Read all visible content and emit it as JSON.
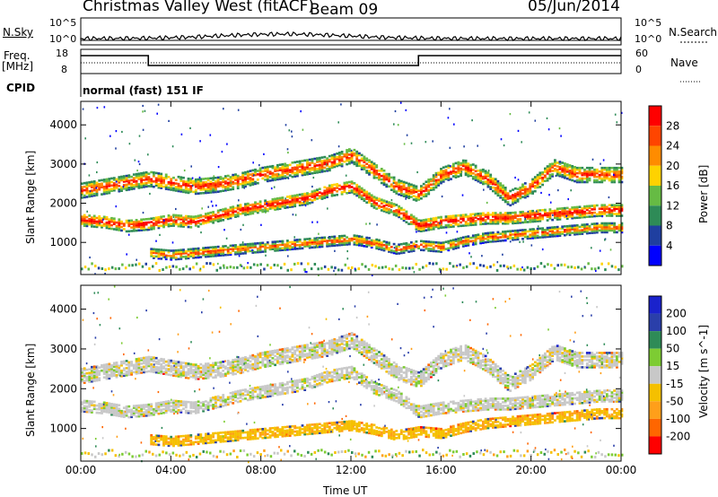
{
  "header": {
    "station": "Christmas Valley West (fitACF)",
    "beam": "Beam 09",
    "date": "05/Jun/2014"
  },
  "noise_panel": {
    "left_label": "N.Sky",
    "right_label": "N.Search",
    "left_ticks": [
      "10^5",
      "10^0"
    ],
    "right_ticks": [
      "10^5",
      "10^0"
    ]
  },
  "freq_panel": {
    "left_label_1": "Freq.",
    "left_label_2": "[MHz]",
    "right_label": "Nave",
    "left_ticks": [
      "18",
      "8"
    ],
    "right_ticks": [
      "60",
      "0"
    ],
    "cpid_label": "CPID",
    "cpid_text": "normal (fast) 151 IF"
  },
  "colors": {
    "power": [
      "#0000ff",
      "#1f3fa0",
      "#2e8b57",
      "#66bb44",
      "#ffd200",
      "#ff8c00",
      "#ff4500",
      "#ff0000"
    ],
    "velocity": [
      "#ff0000",
      "#ff6600",
      "#ff9f1a",
      "#f5c000",
      "#c8c8c8",
      "#7dcc33",
      "#2e8b57",
      "#2a3faa",
      "#1a22cc"
    ]
  },
  "chart_data": [
    {
      "type": "heatmap",
      "panel": "power",
      "xlabel": "",
      "ylabel": "Slant Range [km]",
      "x_ticks": [
        "00:00",
        "04:00",
        "08:00",
        "12:00",
        "16:00",
        "20:00",
        "00:00"
      ],
      "x_tick_hours": [
        0,
        4,
        8,
        12,
        16,
        20,
        24
      ],
      "xlim": [
        0,
        24
      ],
      "y_ticks": [
        1000,
        2000,
        3000,
        4000
      ],
      "ylim": [
        180,
        4600
      ],
      "colorbar_label": "Power [dB]",
      "colorbar_ticks": [
        "4",
        "8",
        "12",
        "16",
        "20",
        "24",
        "28"
      ],
      "bands": [
        {
          "name": "upper echo band",
          "points": [
            [
              0,
              2300
            ],
            [
              1,
              2400
            ],
            [
              2,
              2500
            ],
            [
              3,
              2600
            ],
            [
              4,
              2500
            ],
            [
              5,
              2400
            ],
            [
              6,
              2450
            ],
            [
              7,
              2550
            ],
            [
              8,
              2700
            ],
            [
              9,
              2800
            ],
            [
              10,
              2900
            ],
            [
              11,
              3000
            ],
            [
              12,
              3200
            ],
            [
              13,
              2800
            ],
            [
              14,
              2400
            ],
            [
              15,
              2200
            ],
            [
              16,
              2700
            ],
            [
              17,
              2900
            ],
            [
              18,
              2600
            ],
            [
              19,
              2100
            ],
            [
              20,
              2400
            ],
            [
              21,
              2900
            ],
            [
              22,
              2700
            ],
            [
              23,
              2700
            ],
            [
              24,
              2700
            ]
          ],
          "width": 380,
          "level": 20
        },
        {
          "name": "middle echo band",
          "points": [
            [
              0,
              1550
            ],
            [
              1,
              1500
            ],
            [
              2,
              1400
            ],
            [
              3,
              1450
            ],
            [
              4,
              1550
            ],
            [
              5,
              1500
            ],
            [
              6,
              1650
            ],
            [
              7,
              1800
            ],
            [
              8,
              1900
            ],
            [
              9,
              2000
            ],
            [
              10,
              2100
            ],
            [
              11,
              2300
            ],
            [
              12,
              2400
            ],
            [
              13,
              2000
            ],
            [
              14,
              1800
            ],
            [
              15,
              1400
            ],
            [
              16,
              1500
            ],
            [
              17,
              1550
            ],
            [
              18,
              1600
            ],
            [
              19,
              1600
            ],
            [
              20,
              1650
            ],
            [
              21,
              1700
            ],
            [
              22,
              1750
            ],
            [
              23,
              1800
            ],
            [
              24,
              1800
            ]
          ],
          "width": 300,
          "level": 22
        },
        {
          "name": "lower echo band",
          "points": [
            [
              3,
              700
            ],
            [
              4,
              650
            ],
            [
              5,
              700
            ],
            [
              6,
              750
            ],
            [
              7,
              800
            ],
            [
              8,
              850
            ],
            [
              9,
              900
            ],
            [
              10,
              950
            ],
            [
              11,
              1000
            ],
            [
              12,
              1050
            ],
            [
              13,
              950
            ],
            [
              14,
              800
            ],
            [
              15,
              900
            ],
            [
              16,
              850
            ],
            [
              17,
              1000
            ],
            [
              18,
              1100
            ],
            [
              19,
              1150
            ],
            [
              20,
              1200
            ],
            [
              21,
              1250
            ],
            [
              22,
              1300
            ],
            [
              23,
              1350
            ],
            [
              24,
              1350
            ]
          ],
          "width": 240,
          "level": 18
        }
      ]
    },
    {
      "type": "heatmap",
      "panel": "velocity",
      "xlabel": "Time UT",
      "ylabel": "Slant Range [km]",
      "x_ticks": [
        "00:00",
        "04:00",
        "08:00",
        "12:00",
        "16:00",
        "20:00",
        "00:00"
      ],
      "x_tick_hours": [
        0,
        4,
        8,
        12,
        16,
        20,
        24
      ],
      "xlim": [
        0,
        24
      ],
      "y_ticks": [
        1000,
        2000,
        3000,
        4000
      ],
      "ylim": [
        180,
        4600
      ],
      "colorbar_label": "Velocity [m s^-1]",
      "colorbar_ticks": [
        "200",
        "100",
        "50",
        "15",
        "-15",
        "-50",
        "-100",
        "-200"
      ],
      "bands": [
        {
          "name": "upper echo band",
          "points": [
            [
              0,
              2300
            ],
            [
              1,
              2400
            ],
            [
              2,
              2500
            ],
            [
              3,
              2600
            ],
            [
              4,
              2500
            ],
            [
              5,
              2400
            ],
            [
              6,
              2450
            ],
            [
              7,
              2550
            ],
            [
              8,
              2700
            ],
            [
              9,
              2800
            ],
            [
              10,
              2900
            ],
            [
              11,
              3000
            ],
            [
              12,
              3200
            ],
            [
              13,
              2800
            ],
            [
              14,
              2400
            ],
            [
              15,
              2200
            ],
            [
              16,
              2700
            ],
            [
              17,
              2900
            ],
            [
              18,
              2600
            ],
            [
              19,
              2100
            ],
            [
              20,
              2400
            ],
            [
              21,
              2900
            ],
            [
              22,
              2700
            ],
            [
              23,
              2700
            ],
            [
              24,
              2700
            ]
          ],
          "width": 380,
          "level": 0
        },
        {
          "name": "middle echo band",
          "points": [
            [
              0,
              1550
            ],
            [
              1,
              1500
            ],
            [
              2,
              1400
            ],
            [
              3,
              1450
            ],
            [
              4,
              1550
            ],
            [
              5,
              1500
            ],
            [
              6,
              1650
            ],
            [
              7,
              1800
            ],
            [
              8,
              1900
            ],
            [
              9,
              2000
            ],
            [
              10,
              2100
            ],
            [
              11,
              2300
            ],
            [
              12,
              2400
            ],
            [
              13,
              2000
            ],
            [
              14,
              1800
            ],
            [
              15,
              1400
            ],
            [
              16,
              1500
            ],
            [
              17,
              1550
            ],
            [
              18,
              1600
            ],
            [
              19,
              1600
            ],
            [
              20,
              1650
            ],
            [
              21,
              1700
            ],
            [
              22,
              1750
            ],
            [
              23,
              1800
            ],
            [
              24,
              1800
            ]
          ],
          "width": 300,
          "level": 0
        },
        {
          "name": "lower echo band",
          "points": [
            [
              3,
              700
            ],
            [
              4,
              650
            ],
            [
              5,
              700
            ],
            [
              6,
              750
            ],
            [
              7,
              800
            ],
            [
              8,
              850
            ],
            [
              9,
              900
            ],
            [
              10,
              950
            ],
            [
              11,
              1000
            ],
            [
              12,
              1050
            ],
            [
              13,
              950
            ],
            [
              14,
              800
            ],
            [
              15,
              900
            ],
            [
              16,
              850
            ],
            [
              17,
              1000
            ],
            [
              18,
              1100
            ],
            [
              19,
              1150
            ],
            [
              20,
              1200
            ],
            [
              21,
              1250
            ],
            [
              22,
              1300
            ],
            [
              23,
              1350
            ],
            [
              24,
              1350
            ]
          ],
          "width": 240,
          "level": -40
        }
      ]
    }
  ]
}
